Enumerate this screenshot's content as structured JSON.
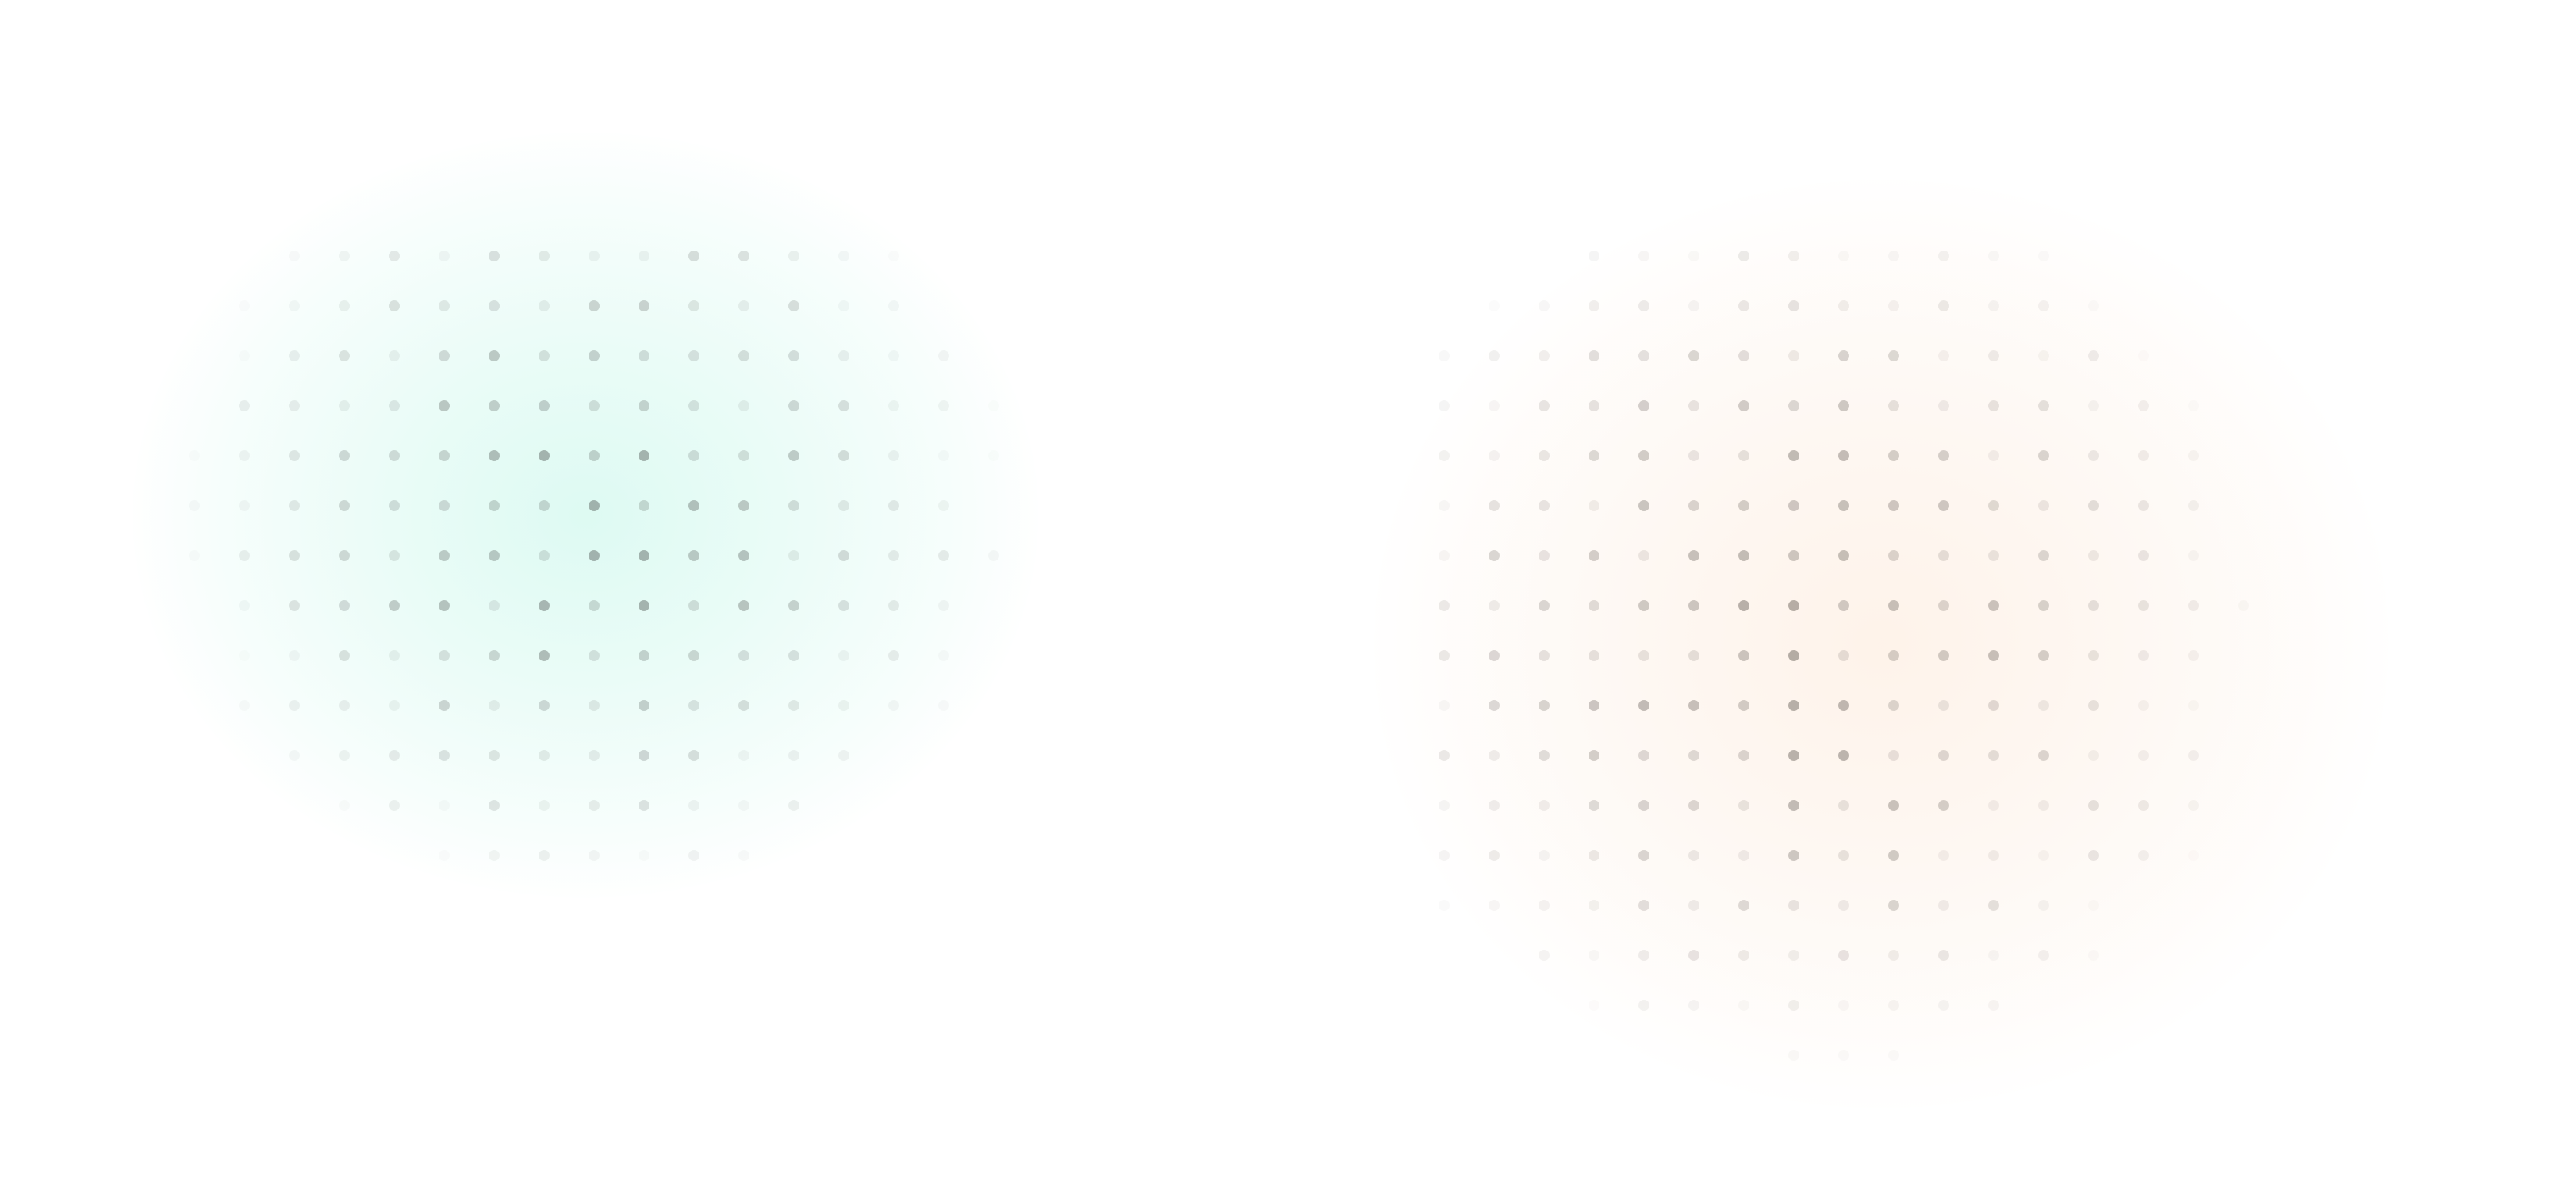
{
  "panels": [
    {
      "id": "left",
      "glow_color": "#2fe0b0",
      "dot_color": "#4a4f4c",
      "dot_seed": 7
    },
    {
      "id": "right",
      "glow_color": "#f7b27a",
      "dot_color": "#4f4740",
      "dot_seed": 19
    }
  ]
}
